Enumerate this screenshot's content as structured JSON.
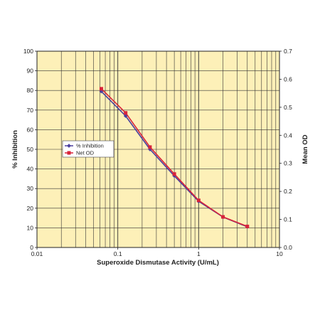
{
  "chart_data": {
    "type": "line",
    "title": "",
    "xlabel": "Superoxide Dismutase Activity (U/mL)",
    "ylabel_left": "% Inhibition",
    "ylabel_right": "Mean OD",
    "x_scale": "log",
    "xlim": [
      0.01,
      10
    ],
    "x_ticks": [
      0.01,
      0.1,
      1,
      10
    ],
    "x_tick_labels": [
      "0.01",
      "0.1",
      "1",
      "10"
    ],
    "ylim_left": [
      0,
      100
    ],
    "y_ticks_left": [
      "0",
      "10",
      "20",
      "30",
      "40",
      "50",
      "60",
      "70",
      "80",
      "90",
      "100"
    ],
    "ylim_right": [
      0,
      0.7
    ],
    "y_ticks_right": [
      "0.0",
      "0.1",
      "0.2",
      "0.3",
      "0.4",
      "0.5",
      "0.6",
      "0.7"
    ],
    "grid": true,
    "legend_position": "center-left",
    "background_color": "#fdf0b8",
    "series": [
      {
        "name": "% Inhibition",
        "axis": "left",
        "color": "#4a3f9e",
        "marker": "diamond",
        "x": [
          0.0625,
          0.125,
          0.25,
          0.5,
          1,
          2,
          4
        ],
        "y": [
          79.5,
          67,
          50,
          36.5,
          23.5,
          15.5,
          10.5
        ]
      },
      {
        "name": "Net OD",
        "axis": "right",
        "color": "#d8243a",
        "marker": "square",
        "x": [
          0.0625,
          0.125,
          0.25,
          0.5,
          1,
          2,
          4
        ],
        "y": [
          0.566,
          0.48,
          0.358,
          0.262,
          0.168,
          0.109,
          0.075
        ]
      }
    ]
  }
}
